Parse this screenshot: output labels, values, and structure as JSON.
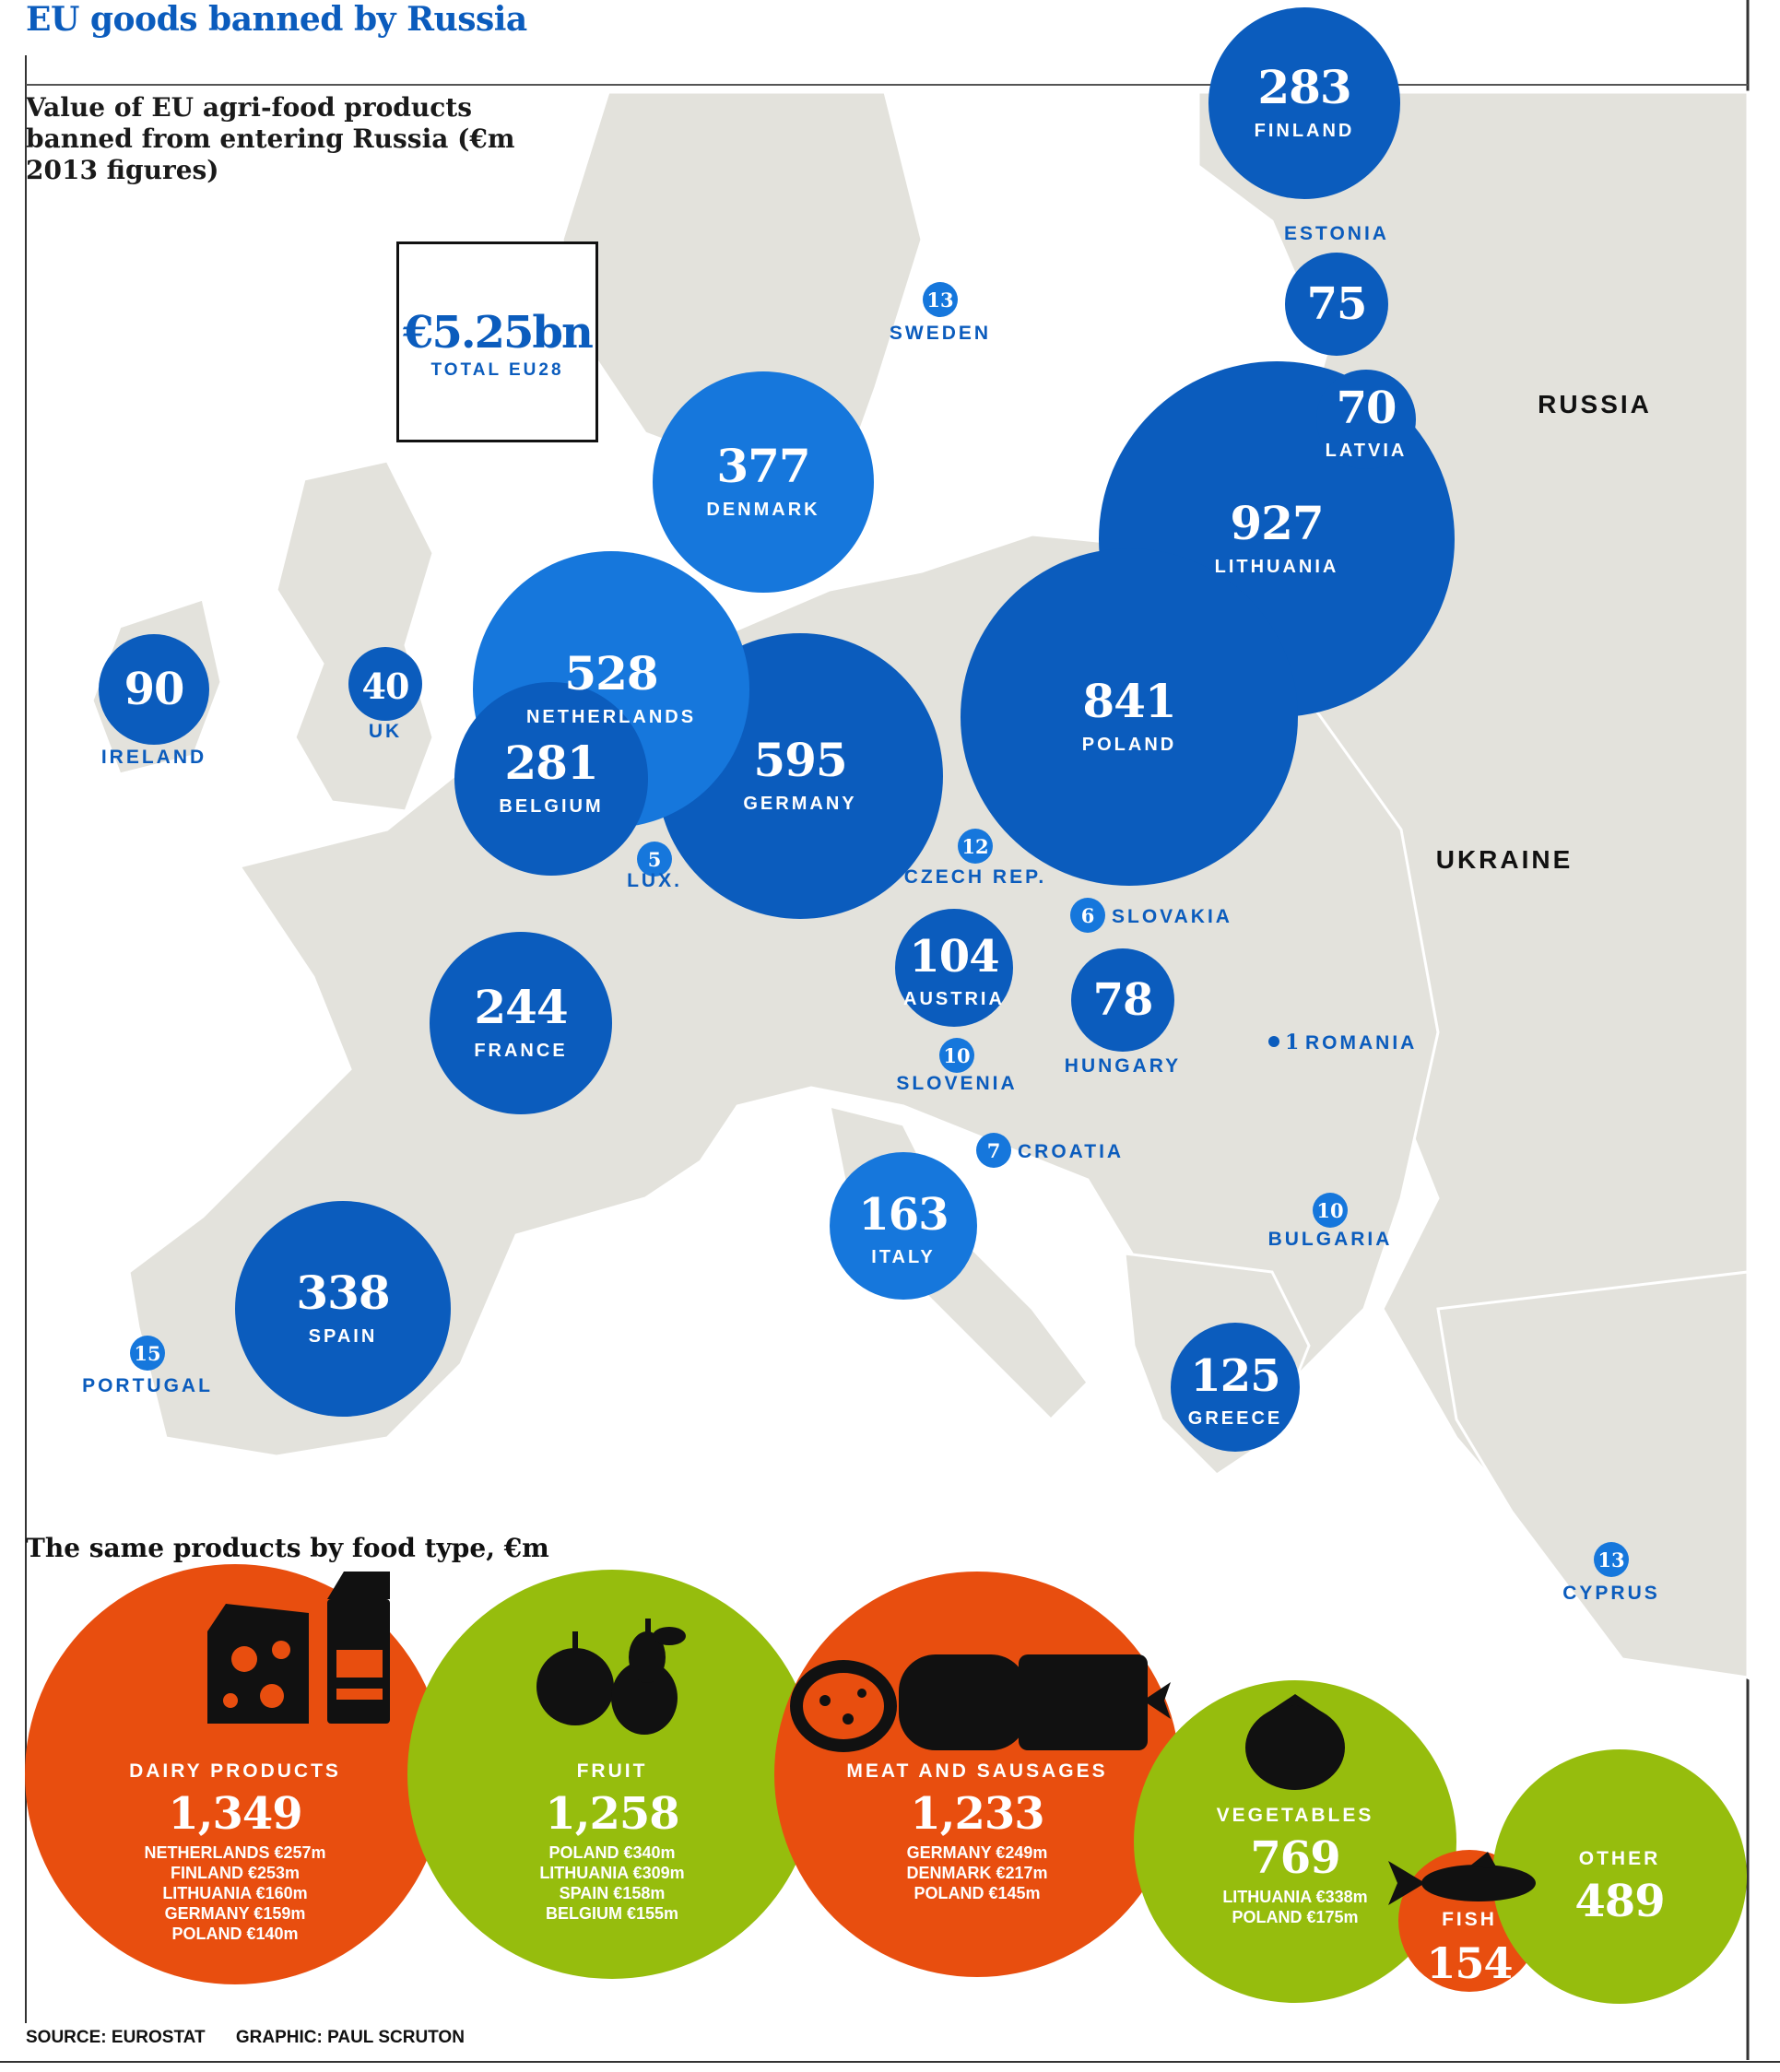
{
  "title": "EU goods banned by Russia",
  "subtitle": "Value of EU agri-food products banned from entering Russia (€m 2013 figures)",
  "total": {
    "value": "€5.25bn",
    "label": "TOTAL EU28"
  },
  "map_labels": {
    "russia": "RUSSIA",
    "ukraine": "UKRAINE"
  },
  "section2_title": "The same products by food type, €m",
  "source": "SOURCE: EUROSTAT",
  "graphic": "GRAPHIC: PAUL SCRUTON",
  "colors": {
    "map_land": "#e3e2dc",
    "bubble_dark": "#0b5cbd",
    "bubble_light": "#1677dc",
    "orange": "#e84e0f",
    "green": "#96bd0d",
    "label_blue": "#0b5cbd"
  },
  "chart_data": [
    {
      "type": "bubble-map",
      "title": "Value of EU agri-food products banned from entering Russia (€m 2013 figures)",
      "unit": "€m",
      "points": [
        {
          "country": "FINLAND",
          "value": 283
        },
        {
          "country": "ESTONIA",
          "value": 75
        },
        {
          "country": "LATVIA",
          "value": 70
        },
        {
          "country": "LITHUANIA",
          "value": 927
        },
        {
          "country": "POLAND",
          "value": 841
        },
        {
          "country": "SWEDEN",
          "value": 13
        },
        {
          "country": "DENMARK",
          "value": 377
        },
        {
          "country": "NETHERLANDS",
          "value": 528
        },
        {
          "country": "BELGIUM",
          "value": 281
        },
        {
          "country": "GERMANY",
          "value": 595
        },
        {
          "country": "IRELAND",
          "value": 90
        },
        {
          "country": "UK",
          "value": 40
        },
        {
          "country": "LUX.",
          "value": 5
        },
        {
          "country": "CZECH REP.",
          "value": 12
        },
        {
          "country": "SLOVAKIA",
          "value": 6
        },
        {
          "country": "AUSTRIA",
          "value": 104
        },
        {
          "country": "HUNGARY",
          "value": 78
        },
        {
          "country": "ROMANIA",
          "value": 1
        },
        {
          "country": "FRANCE",
          "value": 244
        },
        {
          "country": "SLOVENIA",
          "value": 10
        },
        {
          "country": "CROATIA",
          "value": 7
        },
        {
          "country": "ITALY",
          "value": 163
        },
        {
          "country": "BULGARIA",
          "value": 10
        },
        {
          "country": "SPAIN",
          "value": 338
        },
        {
          "country": "PORTUGAL",
          "value": 15
        },
        {
          "country": "GREECE",
          "value": 125
        },
        {
          "country": "CYPRUS",
          "value": 13
        }
      ]
    },
    {
      "type": "bubble",
      "title": "The same products by food type, €m",
      "unit": "€m",
      "categories": [
        {
          "name": "DAIRY PRODUCTS",
          "value_text": "1,349",
          "value": 1349,
          "icon": "cheese-milk-icon",
          "color": "orange",
          "breakdown": [
            "NETHERLANDS €257m",
            "FINLAND €253m",
            "LITHUANIA €160m",
            "GERMANY €159m",
            "POLAND €140m"
          ]
        },
        {
          "name": "FRUIT",
          "value_text": "1,258",
          "value": 1258,
          "icon": "apple-pear-icon",
          "color": "green",
          "breakdown": [
            "POLAND €340m",
            "LITHUANIA €309m",
            "SPAIN €158m",
            "BELGIUM €155m"
          ]
        },
        {
          "name": "MEAT AND SAUSAGES",
          "value_text": "1,233",
          "value": 1233,
          "icon": "sausage-icon",
          "color": "orange",
          "breakdown": [
            "GERMANY €249m",
            "DENMARK €217m",
            "POLAND €145m"
          ]
        },
        {
          "name": "VEGETABLES",
          "value_text": "769",
          "value": 769,
          "icon": "tomato-icon",
          "color": "green",
          "breakdown": [
            "LITHUANIA €338m",
            "POLAND €175m"
          ]
        },
        {
          "name": "FISH",
          "value_text": "154",
          "value": 154,
          "icon": "fish-icon",
          "color": "orange",
          "breakdown": []
        },
        {
          "name": "OTHER",
          "value_text": "489",
          "value": 489,
          "icon": "",
          "color": "green",
          "breakdown": []
        }
      ]
    }
  ]
}
